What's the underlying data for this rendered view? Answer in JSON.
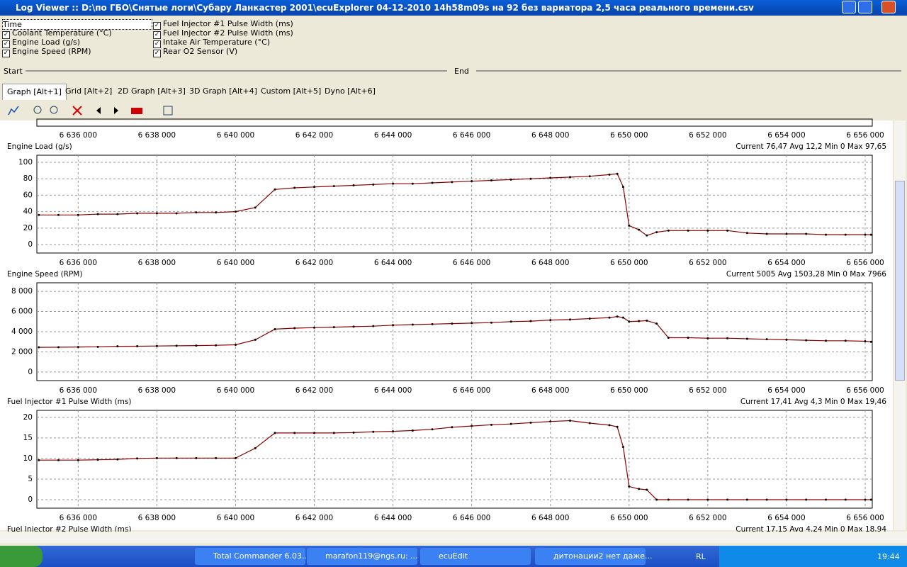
{
  "window": {
    "title": "Log Viewer :: D:\\по ГБО\\Снятые логи\\Субару Ланкастер 2001\\ecuExplorer  04-12-2010 14h58m09s на 92 без вариатора 2,5 часа реального времени.csv"
  },
  "options": [
    {
      "label": "Time",
      "checked": false
    },
    {
      "label": "Coolant Temperature (°C)",
      "checked": true
    },
    {
      "label": "Engine Load (g/s)",
      "checked": true
    },
    {
      "label": "Engine Speed (RPM)",
      "checked": true
    },
    {
      "label": "Fuel Injector #1 Pulse Width (ms)",
      "checked": true
    },
    {
      "label": "Fuel Injector #2 Pulse Width (ms)",
      "checked": true
    },
    {
      "label": "Intake Air Temperature (°C)",
      "checked": true
    },
    {
      "label": "Rear O2 Sensor (V)",
      "checked": true
    }
  ],
  "range": {
    "start": "Start",
    "end": "End"
  },
  "tabs": {
    "items": [
      "Graph [Alt+1]",
      "Grid [Alt+2]",
      "2D Graph [Alt+3]",
      "3D Graph [Alt+4]",
      "Custom [Alt+5]",
      "Dyno [Alt+6]"
    ],
    "active": 0
  },
  "top_strip": {
    "xlim": [
      6634950,
      6656180
    ],
    "xticks": [
      {
        "value": 6636000,
        "label": "6 636 000"
      },
      {
        "value": 6638000,
        "label": "6 638 000"
      },
      {
        "value": 6640000,
        "label": "6 640 000"
      },
      {
        "value": 6642000,
        "label": "6 642 000"
      },
      {
        "value": 6644000,
        "label": "6 644 000"
      },
      {
        "value": 6646000,
        "label": "6 646 000"
      },
      {
        "value": 6648000,
        "label": "6 648 000"
      },
      {
        "value": 6650000,
        "label": "6 650 000"
      },
      {
        "value": 6652000,
        "label": "6 652 000"
      },
      {
        "value": 6654000,
        "label": "6 654 000"
      },
      {
        "value": 6656000,
        "label": "6 656 000"
      }
    ]
  },
  "chart_data": [
    {
      "type": "line",
      "title": "Engine Load (g/s)",
      "stats": "Current 76,47 Avg 12,2 Min 0 Max 97,65",
      "color": "#8b0000",
      "grid": true,
      "x": [
        6635000,
        6635500,
        6636000,
        6636500,
        6637000,
        6637500,
        6638000,
        6638500,
        6639000,
        6639500,
        6640000,
        6640500,
        6641000,
        6641500,
        6642000,
        6642500,
        6643000,
        6643500,
        6644000,
        6644500,
        6645000,
        6645500,
        6646000,
        6646500,
        6647000,
        6647500,
        6648000,
        6648500,
        6649000,
        6649500,
        6649700,
        6649850,
        6650000,
        6650250,
        6650450,
        6650700,
        6651000,
        6651500,
        6652000,
        6652500,
        6653000,
        6653500,
        6654000,
        6654500,
        6655000,
        6655500,
        6656000,
        6656150
      ],
      "values": [
        36,
        36,
        36,
        37,
        37,
        38,
        38,
        38,
        39,
        39,
        40,
        45,
        67,
        69,
        70,
        71,
        72,
        73,
        74,
        74,
        75,
        76,
        77,
        78,
        79,
        80,
        81,
        82,
        83,
        85,
        86,
        70,
        23,
        18,
        11,
        15,
        17,
        17,
        17,
        17,
        14,
        13,
        13,
        13,
        12,
        12,
        12,
        12
      ],
      "xlim": [
        6634950,
        6656180
      ],
      "ylim": [
        -10.3,
        108.6
      ],
      "xticks": [
        {
          "value": 6636000,
          "label": "6 636 000"
        },
        {
          "value": 6638000,
          "label": "6 638 000"
        },
        {
          "value": 6640000,
          "label": "6 640 000"
        },
        {
          "value": 6642000,
          "label": "6 642 000"
        },
        {
          "value": 6644000,
          "label": "6 644 000"
        },
        {
          "value": 6646000,
          "label": "6 646 000"
        },
        {
          "value": 6648000,
          "label": "6 648 000"
        },
        {
          "value": 6650000,
          "label": "6 650 000"
        },
        {
          "value": 6652000,
          "label": "6 652 000"
        },
        {
          "value": 6654000,
          "label": "6 654 000"
        },
        {
          "value": 6656000,
          "label": "6 656 000"
        }
      ],
      "yticks": [
        0,
        20,
        40,
        60,
        80,
        100
      ]
    },
    {
      "type": "line",
      "title": "Engine Speed (RPM)",
      "stats": "Current 5005 Avg 1503,28 Min 0 Max 7966",
      "color": "#8b0000",
      "grid": true,
      "x": [
        6635000,
        6635500,
        6636000,
        6636500,
        6637000,
        6637500,
        6638000,
        6638500,
        6639000,
        6639500,
        6640000,
        6640500,
        6641000,
        6641500,
        6642000,
        6642500,
        6643000,
        6643500,
        6644000,
        6644500,
        6645000,
        6645500,
        6646000,
        6646500,
        6647000,
        6647500,
        6648000,
        6648500,
        6649000,
        6649500,
        6649700,
        6649850,
        6650000,
        6650250,
        6650450,
        6650700,
        6651000,
        6651500,
        6652000,
        6652500,
        6653000,
        6653500,
        6654000,
        6654500,
        6655000,
        6655500,
        6656000,
        6656150
      ],
      "values": [
        2450,
        2460,
        2480,
        2500,
        2550,
        2560,
        2580,
        2600,
        2620,
        2650,
        2700,
        3200,
        4250,
        4350,
        4400,
        4450,
        4500,
        4550,
        4650,
        4700,
        4750,
        4800,
        4850,
        4900,
        5000,
        5050,
        5150,
        5200,
        5300,
        5400,
        5500,
        5400,
        5000,
        5050,
        5100,
        4800,
        3400,
        3400,
        3350,
        3350,
        3300,
        3250,
        3200,
        3150,
        3100,
        3100,
        3050,
        3000
      ],
      "xlim": [
        6634950,
        6656180
      ],
      "ylim": [
        -850,
        8850
      ],
      "xticks": [
        {
          "value": 6636000,
          "label": "6 636 000"
        },
        {
          "value": 6638000,
          "label": "6 638 000"
        },
        {
          "value": 6640000,
          "label": "6 640 000"
        },
        {
          "value": 6642000,
          "label": "6 642 000"
        },
        {
          "value": 6644000,
          "label": "6 644 000"
        },
        {
          "value": 6646000,
          "label": "6 646 000"
        },
        {
          "value": 6648000,
          "label": "6 648 000"
        },
        {
          "value": 6650000,
          "label": "6 650 000"
        },
        {
          "value": 6652000,
          "label": "6 652 000"
        },
        {
          "value": 6654000,
          "label": "6 654 000"
        },
        {
          "value": 6656000,
          "label": "6 656 000"
        }
      ],
      "yticks": [
        0,
        {
          "value": 2000,
          "label": "2 000"
        },
        {
          "value": 4000,
          "label": "4 000"
        },
        {
          "value": 6000,
          "label": "6 000"
        },
        {
          "value": 8000,
          "label": "8 000"
        }
      ]
    },
    {
      "type": "line",
      "title": "Fuel Injector #1 Pulse Width (ms)",
      "stats": "Current 17,41 Avg 4,3 Min 0 Max 19,46",
      "color": "#8b0000",
      "grid": true,
      "x": [
        6635000,
        6635500,
        6636000,
        6636500,
        6637000,
        6637500,
        6638000,
        6638500,
        6639000,
        6639500,
        6640000,
        6640500,
        6641000,
        6641500,
        6642000,
        6642500,
        6643000,
        6643500,
        6644000,
        6644500,
        6645000,
        6645500,
        6646000,
        6646500,
        6647000,
        6647500,
        6648000,
        6648500,
        6649000,
        6649500,
        6649700,
        6649850,
        6650000,
        6650250,
        6650450,
        6650700,
        6651000,
        6651500,
        6652000,
        6652500,
        6653000,
        6653500,
        6654000,
        6654500,
        6655000,
        6655500,
        6656000,
        6656150
      ],
      "values": [
        9.6,
        9.6,
        9.6,
        9.7,
        9.8,
        10,
        10.1,
        10.1,
        10.1,
        10.1,
        10.1,
        12.5,
        16.2,
        16.2,
        16.2,
        16.2,
        16.3,
        16.5,
        16.6,
        16.8,
        17.1,
        17.6,
        17.9,
        18.2,
        18.4,
        18.7,
        19,
        19.2,
        18.6,
        18.1,
        17.7,
        12.8,
        3.2,
        2.6,
        2.4,
        0,
        0,
        0,
        0,
        0,
        0,
        0,
        0,
        0,
        0,
        0,
        0,
        0
      ],
      "xlim": [
        6634950,
        6656180
      ],
      "ylim": [
        -2.07,
        21.7
      ],
      "xticks": [
        {
          "value": 6636000,
          "label": "6 636 000"
        },
        {
          "value": 6638000,
          "label": "6 638 000"
        },
        {
          "value": 6640000,
          "label": "6 640 000"
        },
        {
          "value": 6642000,
          "label": "6 642 000"
        },
        {
          "value": 6644000,
          "label": "6 644 000"
        },
        {
          "value": 6646000,
          "label": "6 646 000"
        },
        {
          "value": 6648000,
          "label": "6 648 000"
        },
        {
          "value": 6650000,
          "label": "6 650 000"
        },
        {
          "value": 6652000,
          "label": "6 652 000"
        },
        {
          "value": 6654000,
          "label": "6 654 000"
        },
        {
          "value": 6656000,
          "label": "6 656 000"
        }
      ],
      "yticks": [
        0,
        5,
        10,
        15,
        20
      ]
    }
  ],
  "bottom_strip": {
    "title": "Fuel Injector #2 Pulse Width (ms)",
    "stats": "Current 17,15 Avg 4,24 Min 0 Max 18,94"
  },
  "taskbar": {
    "tasks": [
      "Total Commander 6.03...",
      "marafon119@ngs.ru: ...",
      "ecuEdit",
      "дитонации2 нет даже..."
    ],
    "lang": "RL",
    "clock": "19:44"
  }
}
